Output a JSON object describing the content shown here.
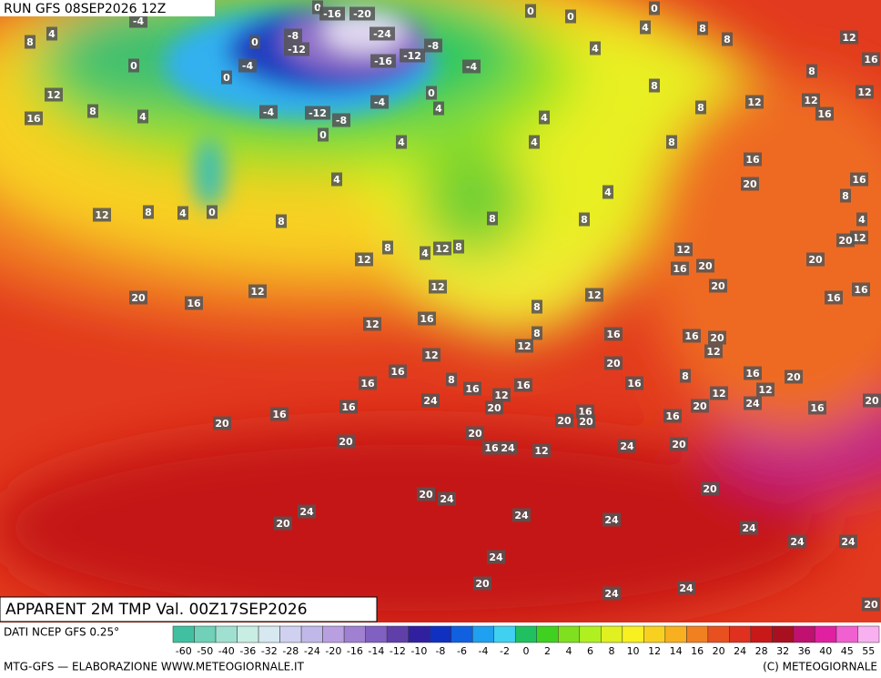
{
  "header": {
    "run": "RUN GFS 08SEP2026 12Z"
  },
  "footer": {
    "title": "APPARENT 2M TMP Val. 00Z17SEP2026",
    "source": "DATI NCEP GFS 0.25°",
    "credit": "MTG-GFS — ELABORAZIONE WWW.METEOGIORNALE.IT",
    "copyright": "(C) METEOGIORNALE"
  },
  "legend": {
    "ticks": [
      -60,
      -50,
      -40,
      -36,
      -32,
      -28,
      -24,
      -20,
      -16,
      -14,
      -12,
      -10,
      -8,
      -6,
      -4,
      -2,
      0,
      2,
      4,
      6,
      8,
      10,
      12,
      14,
      16,
      20,
      24,
      28,
      32,
      36,
      40,
      45,
      55
    ],
    "colors": [
      "#40c0a0",
      "#70d0b8",
      "#a0e0d0",
      "#c8eee4",
      "#d8e8f0",
      "#d0d0f0",
      "#c0b8e8",
      "#b8a0e0",
      "#a080d0",
      "#8060c0",
      "#6040a8",
      "#3020a0",
      "#1030c0",
      "#1060e0",
      "#20a0f0",
      "#40d0f0",
      "#20c060",
      "#40d020",
      "#80e020",
      "#b0f020",
      "#e0f020",
      "#f8f020",
      "#f8d020",
      "#f8b020",
      "#f08020",
      "#e85020",
      "#e03020",
      "#c81818",
      "#a81020",
      "#c01070",
      "#e020a0",
      "#f060d0",
      "#f8b0f0"
    ]
  },
  "map_labels": [
    -4,
    4,
    8,
    0,
    12,
    16,
    8,
    4,
    0,
    -16,
    -20,
    -8,
    -12,
    0,
    -4,
    0,
    -24,
    -8,
    -12,
    -16,
    -4,
    -4,
    0,
    4,
    -12,
    -8,
    -4,
    0,
    4,
    4,
    0,
    4,
    8,
    12,
    8,
    0,
    0,
    0,
    4,
    8,
    8,
    4,
    8,
    8,
    12,
    12,
    16,
    12,
    16,
    12,
    8,
    4,
    4,
    8,
    16,
    20,
    4,
    8,
    8,
    16,
    8,
    4,
    12,
    20,
    20,
    12,
    16,
    20,
    20,
    12,
    16,
    16,
    8,
    4,
    12,
    8,
    12,
    12,
    8,
    12,
    16,
    20,
    12,
    16,
    8,
    12,
    16,
    16,
    20,
    12,
    12,
    20,
    16,
    8,
    16,
    20,
    12,
    24,
    12,
    20,
    16,
    16,
    20,
    16,
    16,
    8,
    16,
    12,
    16,
    24,
    20,
    16,
    16,
    20,
    20,
    20,
    20,
    16,
    20,
    16,
    24,
    12,
    24,
    20,
    20,
    20,
    24,
    24,
    20,
    24,
    24,
    24,
    24,
    24,
    24,
    20,
    24,
    24,
    20
  ]
}
